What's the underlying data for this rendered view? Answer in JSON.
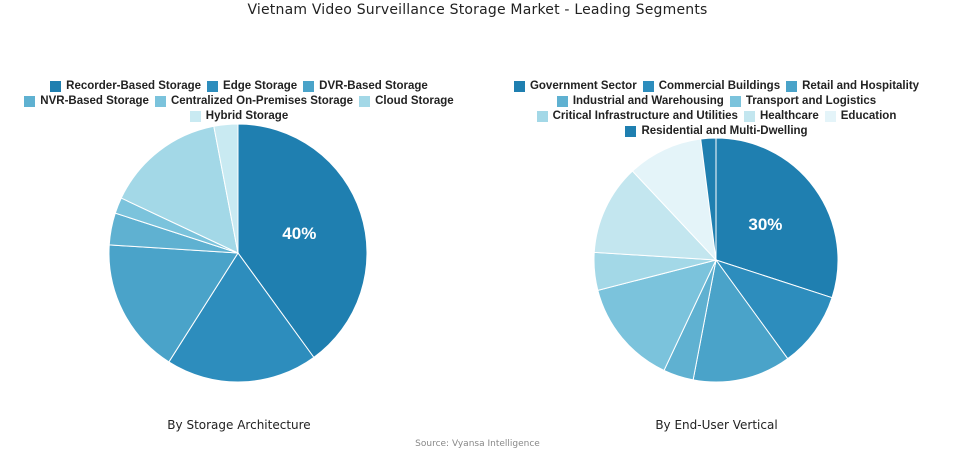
{
  "title": "Vietnam Video Surveillance Storage Market - Leading Segments",
  "source": "Source: Vyansa Intelligence",
  "chart_data": [
    {
      "type": "pie",
      "title": "By Storage Architecture",
      "categories": [
        "Recorder-Based Storage",
        "Edge Storage",
        "DVR-Based Storage",
        "NVR-Based Storage",
        "Centralized On-Premises Storage",
        "Cloud Storage",
        "Hybrid Storage"
      ],
      "values": [
        40,
        19,
        17,
        4,
        2,
        15,
        3
      ],
      "colors": [
        "#1f7fb0",
        "#2d8dbd",
        "#4aa3c9",
        "#5fb1d1",
        "#7bc3dc",
        "#a3d8e7",
        "#c9eaf2"
      ],
      "slice_labels": [
        "40%",
        "",
        "",
        "",
        "",
        "",
        ""
      ],
      "legend_position": "top"
    },
    {
      "type": "pie",
      "title": "By End-User Vertical",
      "categories": [
        "Government Sector",
        "Commercial Buildings",
        "Retail and Hospitality",
        "Industrial and Warehousing",
        "Transport and Logistics",
        "Critical Infrastructure and Utilities",
        "Healthcare",
        "Education",
        "Residential and Multi-Dwelling"
      ],
      "values": [
        30,
        10,
        13,
        4,
        14,
        5,
        12,
        10,
        2
      ],
      "colors": [
        "#1f7fb0",
        "#2d8dbd",
        "#4aa3c9",
        "#5fb1d1",
        "#7bc3dc",
        "#a3d8e7",
        "#c3e6ef",
        "#e4f4f9",
        "#1f7fb0"
      ],
      "slice_labels": [
        "30%",
        "",
        "",
        "",
        "",
        "",
        "",
        "",
        ""
      ],
      "legend_position": "top"
    }
  ]
}
